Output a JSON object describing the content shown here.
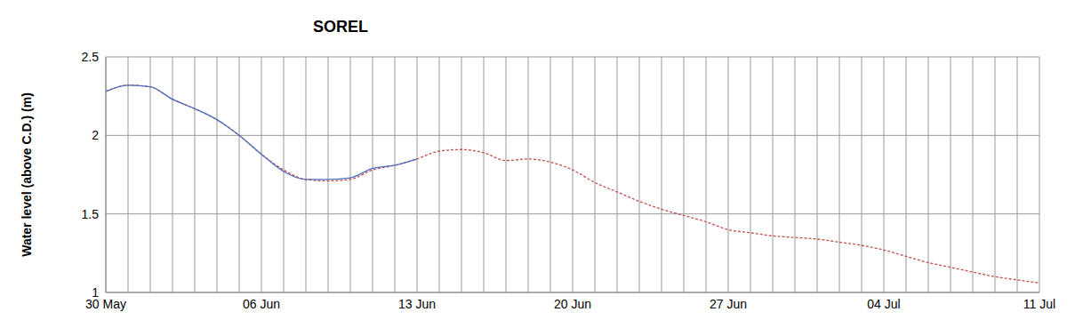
{
  "chart_data": {
    "type": "line",
    "title": "SOREL",
    "y_label": "Water level (above C.D.) (m)",
    "categories": [
      "30 May",
      null,
      null,
      null,
      null,
      null,
      null,
      "06 Jun",
      null,
      null,
      null,
      null,
      null,
      null,
      "13 Jun",
      null,
      null,
      null,
      null,
      null,
      null,
      "20 Jun",
      null,
      null,
      null,
      null,
      null,
      null,
      "27 Jun",
      null,
      null,
      null,
      null,
      null,
      null,
      "04 Jul",
      null,
      null,
      null,
      null,
      null,
      null,
      "11 Jul"
    ],
    "series": [
      {
        "color": "#c0504d",
        "line_style": "dashed",
        "values": [
          2.28,
          2.32,
          2.31,
          2.23,
          2.17,
          2.1,
          2.0,
          1.88,
          1.78,
          1.72,
          1.71,
          1.72,
          1.78,
          1.81,
          1.85,
          1.9,
          1.91,
          1.89,
          1.84,
          1.85,
          1.83,
          1.78,
          1.7,
          1.64,
          1.58,
          1.53,
          1.49,
          1.45,
          1.4,
          1.38,
          1.36,
          1.35,
          1.34,
          1.32,
          1.3,
          1.27,
          1.23,
          1.19,
          1.16,
          1.13,
          1.1,
          1.08,
          1.06
        ]
      },
      {
        "color": "#4f6fbf",
        "line_style": "solid",
        "values": [
          2.28,
          2.32,
          2.31,
          2.23,
          2.17,
          2.1,
          2.0,
          1.88,
          1.77,
          1.72,
          1.72,
          1.73,
          1.79,
          1.81,
          1.85,
          null,
          null,
          null,
          null,
          null,
          null,
          null,
          null,
          null,
          null,
          null,
          null,
          null,
          null,
          null,
          null,
          null,
          null,
          null,
          null,
          null,
          null,
          null,
          null,
          null,
          null,
          null,
          null
        ]
      }
    ],
    "ylim": [
      1,
      2.5
    ],
    "yticks": [
      1,
      1.5,
      2,
      2.5
    ],
    "grid": true
  }
}
